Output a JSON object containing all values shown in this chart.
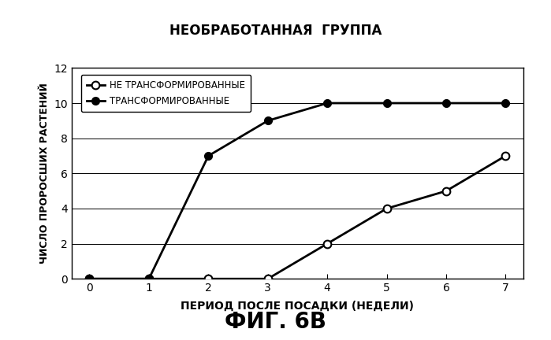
{
  "title": "НЕОБРАБОТАННАЯ  ГРУППА",
  "xlabel": "ПЕРИОД ПОСЛЕ ПОСАДКИ (НЕДЕЛИ)",
  "ylabel": "ЧИСЛО ПРОРОСШИХ РАСТЕНИЙ",
  "caption": "ФИГ. 6В",
  "x": [
    0,
    1,
    2,
    3,
    4,
    5,
    6,
    7
  ],
  "transformed": [
    0,
    0,
    7,
    9,
    10,
    10,
    10,
    10
  ],
  "not_transformed": [
    0,
    0,
    0,
    0,
    2,
    4,
    5,
    7
  ],
  "legend_not_transformed": "НЕ ТРАНСФОРМИРОВАННЫЕ",
  "legend_transformed": "ТРАНСФОРМИРОВАННЫЕ",
  "xlim": [
    -0.3,
    7.3
  ],
  "ylim": [
    0,
    12
  ],
  "yticks": [
    0,
    2,
    4,
    6,
    8,
    10,
    12
  ],
  "xticks": [
    0,
    1,
    2,
    3,
    4,
    5,
    6,
    7
  ],
  "background_color": "#ffffff",
  "linewidth": 2.0,
  "marker_size": 7
}
